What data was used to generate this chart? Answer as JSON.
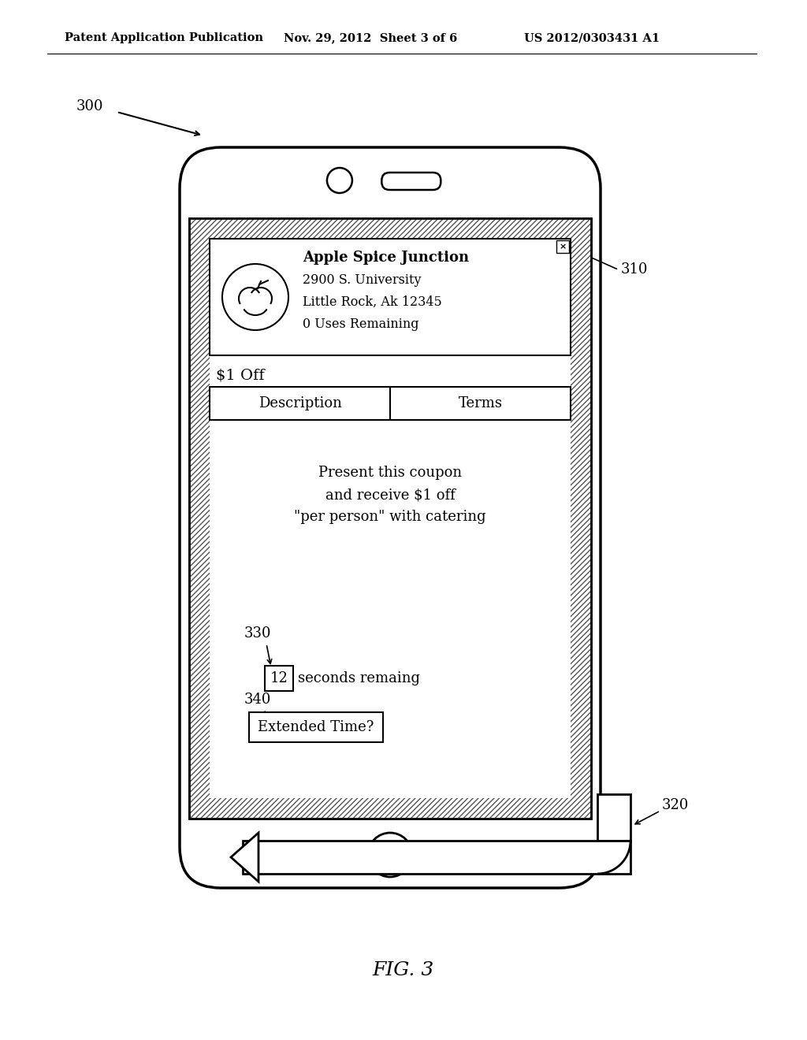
{
  "bg_color": "#ffffff",
  "header_left": "Patent Application Publication",
  "header_mid": "Nov. 29, 2012  Sheet 3 of 6",
  "header_right": "US 2012/0303431 A1",
  "fig_label": "FIG. 3",
  "label_300": "300",
  "label_310": "310",
  "label_320": "320",
  "label_330": "330",
  "label_340": "340",
  "merchant_name": "Apple Spice Junction",
  "merchant_addr1": "2900 S. University",
  "merchant_addr2": "Little Rock, Ak 12345",
  "merchant_uses": "0 Uses Remaining",
  "coupon_label": "$1 Off",
  "tab1": "Description",
  "tab2": "Terms",
  "coupon_text": "Present this coupon\nand receive $1 off\n\"per person\" with catering",
  "seconds_num": "12",
  "seconds_text": "seconds remaing",
  "extended_text": "Extended Time?"
}
